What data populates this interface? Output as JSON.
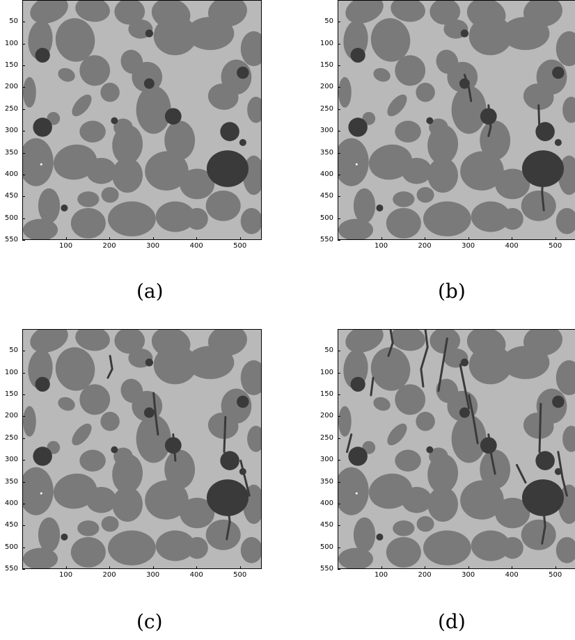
{
  "panels": [
    {
      "caption": "(a)"
    },
    {
      "caption": "(b)"
    },
    {
      "caption": "(c)"
    },
    {
      "caption": "(d)"
    }
  ],
  "axes": {
    "yticks": [
      "50",
      "100",
      "150",
      "200",
      "250",
      "300",
      "350",
      "400",
      "450",
      "500",
      "550"
    ],
    "xticks": [
      "100",
      "200",
      "300",
      "400",
      "500"
    ]
  },
  "colors": {
    "matrix": "#b9b9b9",
    "aggregate": "#7a7a7a",
    "voids_and_cracks": "#3a3a3a",
    "highlight": "#ffffff"
  }
}
